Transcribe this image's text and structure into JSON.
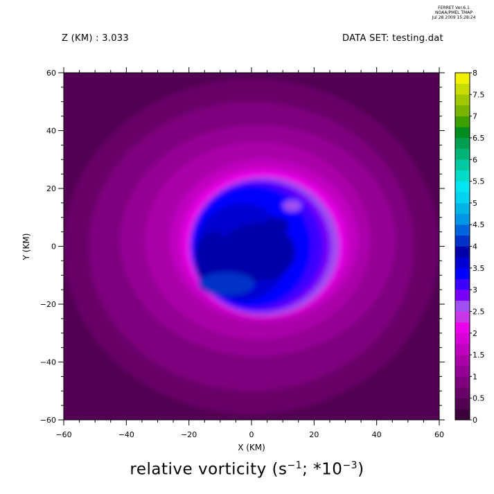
{
  "header": {
    "ferret_lines": [
      "FERRET Ver.6.1",
      "NOAA/PMEL TMAP",
      "Jul 28 2009 15:28:24"
    ],
    "z_label": "Z (KM) : 3.033",
    "dataset_label": "DATA SET: testing.dat"
  },
  "chart_data": {
    "type": "contour",
    "title": "relative vorticity (s^-1; *10^-3)",
    "title_parts": {
      "base": "relative vorticity (s",
      "exp1": "−1",
      "mid": "; *10",
      "exp2": "−3",
      "end": ")"
    },
    "xlabel": "X (KM)",
    "ylabel": "Y (KM)",
    "xlim": [
      -60,
      60
    ],
    "ylim": [
      -60,
      60
    ],
    "x_ticks": [
      -60,
      -40,
      -20,
      0,
      20,
      40,
      60
    ],
    "y_ticks": [
      -60,
      -40,
      -20,
      0,
      20,
      40,
      60
    ],
    "colorbar": {
      "min": 0,
      "max": 8,
      "step": 0.25,
      "labels": [
        "0",
        "0.5",
        "1",
        "1.5",
        "2",
        "2.5",
        "3",
        "3.5",
        "4",
        "4.5",
        "5",
        "5.5",
        "6",
        "6.5",
        "7",
        "7.5",
        "8"
      ],
      "colors": [
        "#3c003c",
        "#520052",
        "#680068",
        "#7e007e",
        "#940094",
        "#aa00aa",
        "#c000c0",
        "#d600d6",
        "#ea00ea",
        "#c838e8",
        "#a050f0",
        "#7800f8",
        "#3c00ff",
        "#0000ff",
        "#0000d0",
        "#0000a8",
        "#0032c8",
        "#0064dc",
        "#0096e6",
        "#00b4e6",
        "#00d2f0",
        "#00e6f0",
        "#00dcc8",
        "#00c8a0",
        "#00b478",
        "#00a050",
        "#008c1e",
        "#3ca000",
        "#78b400",
        "#a0c800",
        "#c8dc00",
        "#f0f000",
        "#ffd000",
        "#ffaa00",
        "#ff8000",
        "#ff5a00",
        "#ff2800",
        "#e60000",
        "#c80000",
        "#aa0000",
        "#900000",
        "#780000",
        "#5a0000"
      ]
    },
    "field": {
      "background_level": 0.25,
      "blobs": [
        {
          "x": 0,
          "y": 0,
          "rx": 60,
          "ry": 58,
          "level": 0.5
        },
        {
          "x": 0,
          "y": 0,
          "rx": 52,
          "ry": 50,
          "level": 0.75
        },
        {
          "x": 2,
          "y": 2,
          "rx": 44,
          "ry": 40,
          "level": 1.0
        },
        {
          "x": 2,
          "y": 2,
          "rx": 36,
          "ry": 34,
          "level": 1.25
        },
        {
          "x": 4,
          "y": 2,
          "rx": 30,
          "ry": 28,
          "level": 1.5
        },
        {
          "x": 4,
          "y": 1,
          "rx": 27,
          "ry": 26,
          "level": 1.75
        },
        {
          "x": 4,
          "y": 1,
          "rx": 25.5,
          "ry": 25,
          "level": 2.0
        },
        {
          "x": 4,
          "y": 0,
          "rx": 24,
          "ry": 24,
          "level": 2.5
        },
        {
          "x": 3,
          "y": 0,
          "rx": 22.5,
          "ry": 23,
          "level": 2.75
        },
        {
          "x": 2,
          "y": 0,
          "rx": 21,
          "ry": 22,
          "level": 3.0
        },
        {
          "x": 0,
          "y": 0,
          "rx": 19,
          "ry": 21,
          "level": 3.25
        },
        {
          "x": -3,
          "y": -2,
          "rx": 15,
          "ry": 17,
          "level": 3.5
        },
        {
          "x": 2,
          "y": -2,
          "rx": 12,
          "ry": 10,
          "level": 3.75
        },
        {
          "x": -12,
          "y": -5,
          "rx": 6,
          "ry": 10,
          "level": 3.75
        },
        {
          "x": 8,
          "y": 7,
          "rx": 4,
          "ry": 3,
          "level": 3.75
        },
        {
          "x": -8,
          "y": -13,
          "rx": 9,
          "ry": 4,
          "level": 4.0
        },
        {
          "x": 13,
          "y": 14,
          "rx": 3,
          "ry": 2,
          "level": 2.5
        }
      ]
    }
  }
}
